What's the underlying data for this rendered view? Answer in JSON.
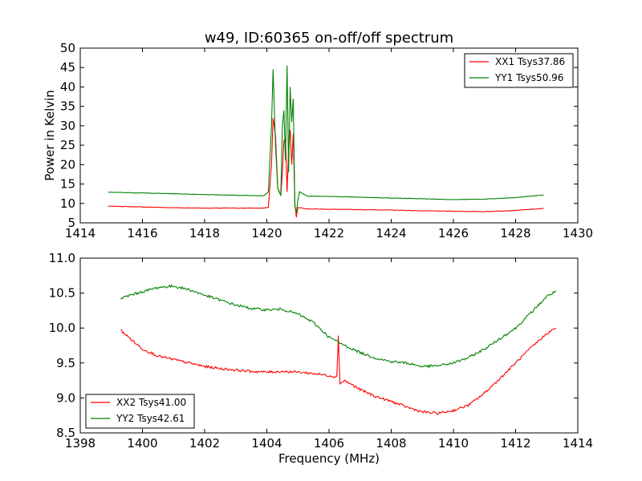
{
  "figure": {
    "title": "w49, ID:60365 on-off/off spectrum"
  },
  "chart_data": [
    {
      "type": "line",
      "title": "w49, ID:60365 on-off/off spectrum",
      "xlabel": "",
      "ylabel": "Power in Kelvin",
      "xlim": [
        1414,
        1430
      ],
      "ylim": [
        5,
        50
      ],
      "xticks": [
        "1414",
        "1416",
        "1418",
        "1420",
        "1422",
        "1424",
        "1426",
        "1428",
        "1430"
      ],
      "yticks": [
        "5",
        "10",
        "15",
        "20",
        "25",
        "30",
        "35",
        "40",
        "45",
        "50"
      ],
      "grid": false,
      "legend_position": "top-right",
      "series": [
        {
          "name": "XX1 Tsys37.86",
          "color": "#ff0000",
          "x": [
            1414.9,
            1416,
            1417,
            1418,
            1419,
            1419.9,
            1420.05,
            1420.15,
            1420.2,
            1420.28,
            1420.35,
            1420.45,
            1420.5,
            1420.55,
            1420.6,
            1420.65,
            1420.7,
            1420.75,
            1420.8,
            1420.85,
            1420.9,
            1420.95,
            1421.0,
            1421.3,
            1422,
            1423,
            1424,
            1425,
            1426,
            1427,
            1428,
            1428.9
          ],
          "y": [
            9.3,
            9.1,
            8.9,
            8.8,
            8.8,
            8.8,
            9.0,
            20.0,
            32.0,
            27.5,
            14.0,
            12.0,
            18.0,
            26.0,
            27.0,
            13.0,
            24.0,
            29.0,
            20.0,
            28.0,
            10.0,
            6.5,
            9.0,
            8.6,
            8.5,
            8.4,
            8.3,
            8.1,
            8.0,
            7.9,
            8.2,
            8.7
          ]
        },
        {
          "name": "YY1 Tsys50.96",
          "color": "#008000",
          "x": [
            1414.9,
            1416,
            1417,
            1418,
            1419,
            1419.9,
            1420.05,
            1420.15,
            1420.2,
            1420.28,
            1420.35,
            1420.45,
            1420.5,
            1420.55,
            1420.6,
            1420.65,
            1420.7,
            1420.75,
            1420.8,
            1420.85,
            1420.9,
            1420.95,
            1421.0,
            1421.05,
            1421.3,
            1422,
            1423,
            1424,
            1425,
            1426,
            1427,
            1428,
            1428.9
          ],
          "y": [
            12.9,
            12.7,
            12.5,
            12.3,
            12.1,
            12.0,
            13.0,
            30.0,
            44.5,
            25.0,
            14.0,
            12.0,
            30.0,
            34.0,
            21.0,
            45.5,
            18.0,
            40.0,
            31.0,
            37.0,
            9.5,
            7.5,
            11.0,
            13.0,
            11.9,
            11.8,
            11.6,
            11.4,
            11.2,
            11.0,
            11.1,
            11.5,
            12.2
          ]
        }
      ]
    },
    {
      "type": "line",
      "title": "",
      "xlabel": "Frequency (MHz)",
      "ylabel": "",
      "xlim": [
        1398,
        1414
      ],
      "ylim": [
        8.5,
        11.0
      ],
      "xticks": [
        "1398",
        "1400",
        "1402",
        "1404",
        "1406",
        "1408",
        "1410",
        "1412",
        "1414"
      ],
      "yticks": [
        "8.5",
        "9.0",
        "9.5",
        "10.0",
        "10.5",
        "11.0"
      ],
      "grid": false,
      "legend_position": "bottom-left",
      "series": [
        {
          "name": "XX2 Tsys41.00",
          "color": "#ff0000",
          "x": [
            1399.3,
            1399.6,
            1400.0,
            1400.5,
            1401.0,
            1401.5,
            1402.0,
            1402.5,
            1403.0,
            1403.5,
            1404.0,
            1404.5,
            1405.0,
            1405.5,
            1406.0,
            1406.25,
            1406.3,
            1406.35,
            1406.5,
            1407.0,
            1407.5,
            1408.0,
            1408.5,
            1409.0,
            1409.5,
            1410.0,
            1410.5,
            1411.0,
            1411.5,
            1412.0,
            1412.5,
            1413.0,
            1413.3
          ],
          "y": [
            9.97,
            9.85,
            9.7,
            9.6,
            9.55,
            9.5,
            9.45,
            9.42,
            9.4,
            9.38,
            9.37,
            9.38,
            9.37,
            9.35,
            9.32,
            9.3,
            9.9,
            9.2,
            9.25,
            9.12,
            9.02,
            8.95,
            8.87,
            8.8,
            8.78,
            8.82,
            8.9,
            9.07,
            9.28,
            9.5,
            9.72,
            9.92,
            10.0
          ]
        },
        {
          "name": "YY2 Tsys42.61",
          "color": "#008000",
          "x": [
            1399.3,
            1399.6,
            1400.0,
            1400.5,
            1401.0,
            1401.5,
            1402.0,
            1402.5,
            1403.0,
            1403.5,
            1404.0,
            1404.5,
            1405.0,
            1405.5,
            1406.0,
            1406.5,
            1407.0,
            1407.5,
            1408.0,
            1408.5,
            1409.0,
            1409.5,
            1410.0,
            1410.5,
            1411.0,
            1411.5,
            1412.0,
            1412.5,
            1413.0,
            1413.3
          ],
          "y": [
            10.42,
            10.47,
            10.52,
            10.58,
            10.6,
            10.55,
            10.47,
            10.4,
            10.33,
            10.28,
            10.26,
            10.27,
            10.2,
            10.08,
            9.87,
            9.75,
            9.65,
            9.57,
            9.52,
            9.5,
            9.45,
            9.46,
            9.5,
            9.58,
            9.7,
            9.85,
            10.0,
            10.22,
            10.45,
            10.53
          ]
        }
      ]
    }
  ]
}
